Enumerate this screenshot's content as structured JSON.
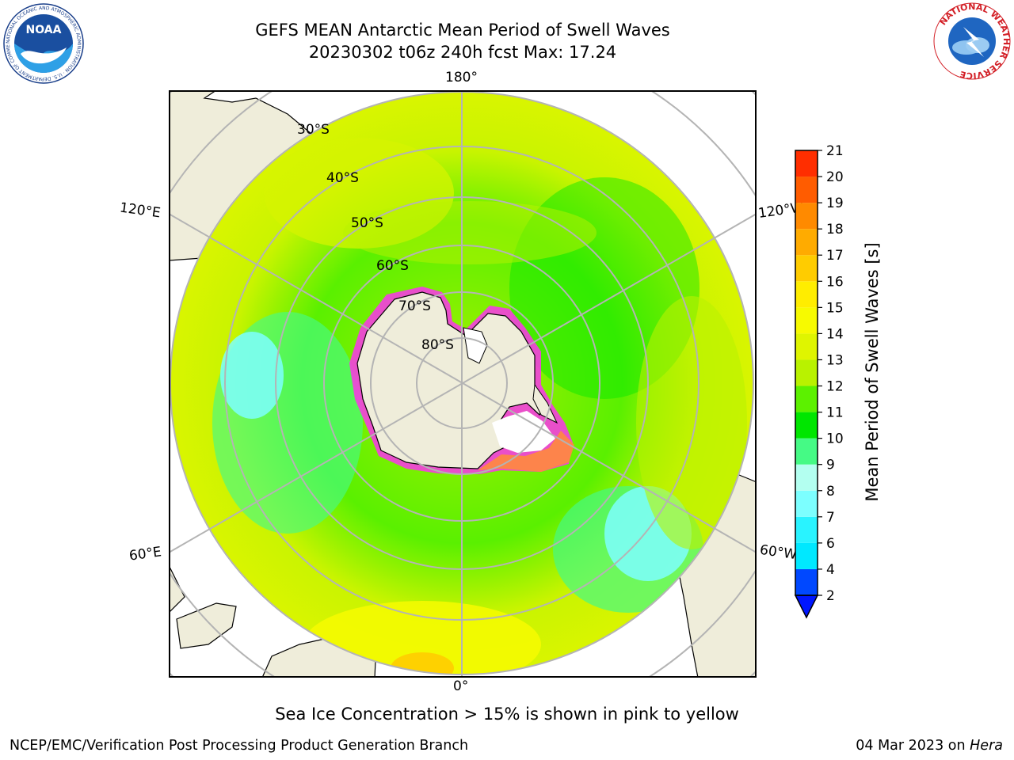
{
  "header": {
    "title_line1": "GEFS MEAN Antarctic Mean Period of Swell Waves",
    "title_line2": "20230302 t06z 240h fcst   Max: 17.24"
  },
  "map": {
    "projection": "south-polar-stereographic",
    "lat_labels": [
      "30°S",
      "40°S",
      "50°S",
      "60°S",
      "70°S",
      "80°S"
    ],
    "lon_labels": {
      "top": "180°",
      "bottom": "0°",
      "upper_left": "120°E",
      "upper_right": "120°W",
      "lower_left": "60°E",
      "lower_right": "60°W"
    },
    "colors": {
      "land": "#efedda",
      "ice_pink": "#f53de0",
      "ice_white": "#ffffff",
      "graticule": "#b4b4b4"
    }
  },
  "colorbar": {
    "label": "Mean Period of Swell Waves [s]",
    "ticks": [
      "2",
      "4",
      "6",
      "7",
      "8",
      "9",
      "10",
      "11",
      "12",
      "13",
      "14",
      "15",
      "16",
      "17",
      "18",
      "19",
      "20",
      "21"
    ],
    "colors": [
      "#0048ff",
      "#00e8ff",
      "#29f3ff",
      "#7cffff",
      "#b3fff0",
      "#45fa85",
      "#00e600",
      "#5cf100",
      "#b9f200",
      "#dff500",
      "#f7fa00",
      "#ffed00",
      "#ffcc00",
      "#ffab00",
      "#ff8a00",
      "#ff5c00",
      "#ff2e00",
      "#ff0000"
    ],
    "under_color": "#0016ff"
  },
  "caption": "Sea Ice Concentration > 15% is shown in pink to yellow",
  "footer": {
    "left": "NCEP/EMC/Verification Post Processing Product Generation Branch",
    "right_date": "04 Mar 2023 on",
    "right_host": "Hera"
  },
  "logos": {
    "noaa_text": "NOAA",
    "noaa_ring": "NATIONAL OCEANIC AND ATMOSPHERIC ADMINISTRATION · U.S. DEPARTMENT OF COMMERCE",
    "nws_ring": "NATIONAL WEATHER SERVICE"
  }
}
